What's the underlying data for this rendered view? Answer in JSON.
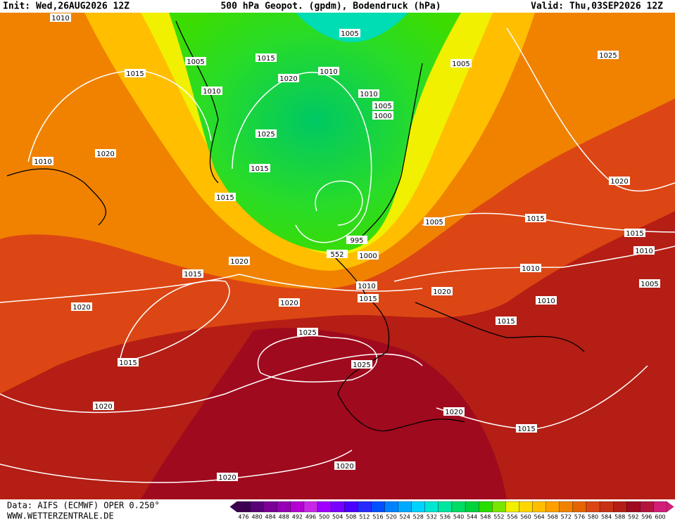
{
  "header": {
    "init": "Init: Wed,26AUG2026 12Z",
    "title": "500 hPa Geopot. (gpdm), Bodendruck (hPa)",
    "valid": "Valid: Thu,03SEP2026 12Z"
  },
  "isobar_labels": [
    "1010",
    "1005",
    "1015",
    "1005",
    "1005",
    "1025",
    "1015",
    "1010",
    "1020",
    "1010",
    "1010",
    "1005",
    "1000",
    "1025",
    "1020",
    "1010",
    "1015",
    "1020",
    "1015",
    "1005",
    "1015",
    "1015",
    "995",
    "1010",
    "552",
    "1000",
    "1020",
    "1010",
    "1015",
    "1005",
    "1010",
    "1020",
    "1015",
    "1010",
    "1020",
    "1020",
    "1015",
    "1025",
    "1025",
    "1015",
    "1020",
    "1020",
    "1015",
    "1020",
    "1020"
  ],
  "colorbar": {
    "labels": [
      "476",
      "480",
      "484",
      "488",
      "492",
      "496",
      "500",
      "504",
      "508",
      "512",
      "516",
      "520",
      "524",
      "528",
      "532",
      "536",
      "540",
      "544",
      "548",
      "552",
      "556",
      "560",
      "564",
      "568",
      "572",
      "576",
      "580",
      "584",
      "588",
      "592",
      "596",
      "600"
    ],
    "colors": [
      "#3c0050",
      "#5a0078",
      "#7a0096",
      "#9600b4",
      "#b400d2",
      "#c828e6",
      "#a000ff",
      "#7800ff",
      "#4b00ff",
      "#2828ff",
      "#0050ff",
      "#0082ff",
      "#00aaff",
      "#00d2ff",
      "#00e6d2",
      "#00e6a0",
      "#00dc64",
      "#00d23c",
      "#28dc00",
      "#78e600",
      "#f0f000",
      "#ffd700",
      "#ffbe00",
      "#ffa000",
      "#f08200",
      "#e66400",
      "#dc4614",
      "#c83214",
      "#b41e14",
      "#a00a1e",
      "#b4143c",
      "#d21e78"
    ]
  },
  "footer": {
    "source": "Data: AIFS (ECMWF) OPER 0.250°",
    "site": "WWW.WETTERZENTRALE.DE"
  }
}
